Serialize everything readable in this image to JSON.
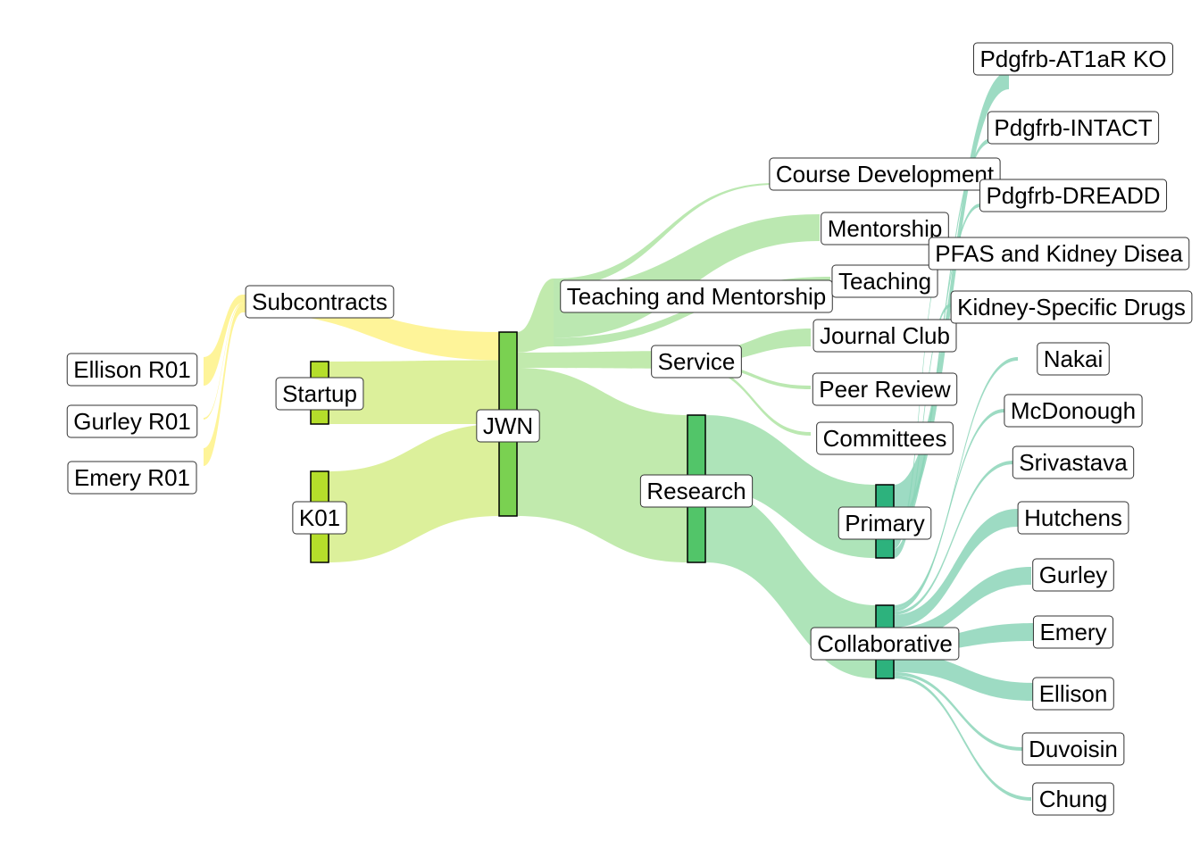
{
  "chart_data": {
    "type": "sankey",
    "nodes": [
      {
        "id": "ellison_r01",
        "label": "Ellison R01",
        "color": "#FDE725"
      },
      {
        "id": "gurley_r01",
        "label": "Gurley R01",
        "color": "#FDE725"
      },
      {
        "id": "emery_r01",
        "label": "Emery R01",
        "color": "#FDE725"
      },
      {
        "id": "subcontracts",
        "label": "Subcontracts",
        "color": "#FDE725"
      },
      {
        "id": "startup",
        "label": "Startup",
        "color": "#B5DE2B"
      },
      {
        "id": "k01",
        "label": "K01",
        "color": "#B5DE2B"
      },
      {
        "id": "jwn",
        "label": "JWN",
        "color": "#7AD151"
      },
      {
        "id": "teaching_mentorship",
        "label": "Teaching and Mentorship",
        "color": "#6ECE58"
      },
      {
        "id": "service",
        "label": "Service",
        "color": "#6ECE58"
      },
      {
        "id": "research",
        "label": "Research",
        "color": "#52C569"
      },
      {
        "id": "course_dev",
        "label": "Course Development",
        "color": "#22A884"
      },
      {
        "id": "mentorship",
        "label": "Mentorship",
        "color": "#22A884"
      },
      {
        "id": "teaching",
        "label": "Teaching",
        "color": "#22A884"
      },
      {
        "id": "journal_club",
        "label": "Journal Club",
        "color": "#22A884"
      },
      {
        "id": "peer_review",
        "label": "Peer Review",
        "color": "#22A884"
      },
      {
        "id": "committees",
        "label": "Committees",
        "color": "#22A884"
      },
      {
        "id": "primary",
        "label": "Primary",
        "color": "#2DB27D"
      },
      {
        "id": "collaborative",
        "label": "Collaborative",
        "color": "#2DB27D"
      },
      {
        "id": "pdgfrb_at1ar",
        "label": "Pdgfrb-AT1aR KO",
        "color": "#22A884"
      },
      {
        "id": "pdgfrb_intact",
        "label": "Pdgfrb-INTACT",
        "color": "#22A884"
      },
      {
        "id": "pdgfrb_dreadd",
        "label": "Pdgfrb-DREADD",
        "color": "#22A884"
      },
      {
        "id": "pfas",
        "label": "PFAS and Kidney Disea",
        "color": "#22A884"
      },
      {
        "id": "kidney_drugs",
        "label": "Kidney-Specific Drugs",
        "color": "#22A884"
      },
      {
        "id": "nakai",
        "label": "Nakai",
        "color": "#22A884"
      },
      {
        "id": "mcdonough",
        "label": "McDonough",
        "color": "#22A884"
      },
      {
        "id": "srivastava",
        "label": "Srivastava",
        "color": "#22A884"
      },
      {
        "id": "hutchens",
        "label": "Hutchens",
        "color": "#22A884"
      },
      {
        "id": "gurley",
        "label": "Gurley",
        "color": "#22A884"
      },
      {
        "id": "emery",
        "label": "Emery",
        "color": "#22A884"
      },
      {
        "id": "ellison",
        "label": "Ellison",
        "color": "#22A884"
      },
      {
        "id": "duvoisin",
        "label": "Duvoisin",
        "color": "#22A884"
      },
      {
        "id": "chung",
        "label": "Chung",
        "color": "#22A884"
      }
    ],
    "links": [
      {
        "source": "ellison_r01",
        "target": "subcontracts",
        "value": 5
      },
      {
        "source": "gurley_r01",
        "target": "subcontracts",
        "value": 1
      },
      {
        "source": "emery_r01",
        "target": "subcontracts",
        "value": 5
      },
      {
        "source": "subcontracts",
        "target": "jwn",
        "value": 11
      },
      {
        "source": "startup",
        "target": "jwn",
        "value": 25
      },
      {
        "source": "k01",
        "target": "jwn",
        "value": 36
      },
      {
        "source": "jwn",
        "target": "teaching_mentorship",
        "value": 8
      },
      {
        "source": "jwn",
        "target": "service",
        "value": 6
      },
      {
        "source": "jwn",
        "target": "research",
        "value": 58
      },
      {
        "source": "teaching_mentorship",
        "target": "course_dev",
        "value": 1
      },
      {
        "source": "teaching_mentorship",
        "target": "mentorship",
        "value": 6
      },
      {
        "source": "teaching_mentorship",
        "target": "teaching",
        "value": 1
      },
      {
        "source": "service",
        "target": "journal_club",
        "value": 4
      },
      {
        "source": "service",
        "target": "peer_review",
        "value": 1
      },
      {
        "source": "service",
        "target": "committees",
        "value": 1
      },
      {
        "source": "research",
        "target": "primary",
        "value": 29
      },
      {
        "source": "research",
        "target": "collaborative",
        "value": 29
      },
      {
        "source": "primary",
        "target": "pdgfrb_at1ar",
        "value": 4
      },
      {
        "source": "primary",
        "target": "pdgfrb_intact",
        "value": 1
      },
      {
        "source": "primary",
        "target": "pdgfrb_dreadd",
        "value": 1
      },
      {
        "source": "primary",
        "target": "pfas",
        "value": 1
      },
      {
        "source": "primary",
        "target": "kidney_drugs",
        "value": 1
      },
      {
        "source": "collaborative",
        "target": "nakai",
        "value": 1
      },
      {
        "source": "collaborative",
        "target": "mcdonough",
        "value": 1
      },
      {
        "source": "collaborative",
        "target": "srivastava",
        "value": 1
      },
      {
        "source": "collaborative",
        "target": "hutchens",
        "value": 4
      },
      {
        "source": "collaborative",
        "target": "gurley",
        "value": 4
      },
      {
        "source": "collaborative",
        "target": "emery",
        "value": 4
      },
      {
        "source": "collaborative",
        "target": "ellison",
        "value": 6
      },
      {
        "source": "collaborative",
        "target": "duvoisin",
        "value": 1
      },
      {
        "source": "collaborative",
        "target": "chung",
        "value": 1
      }
    ]
  }
}
